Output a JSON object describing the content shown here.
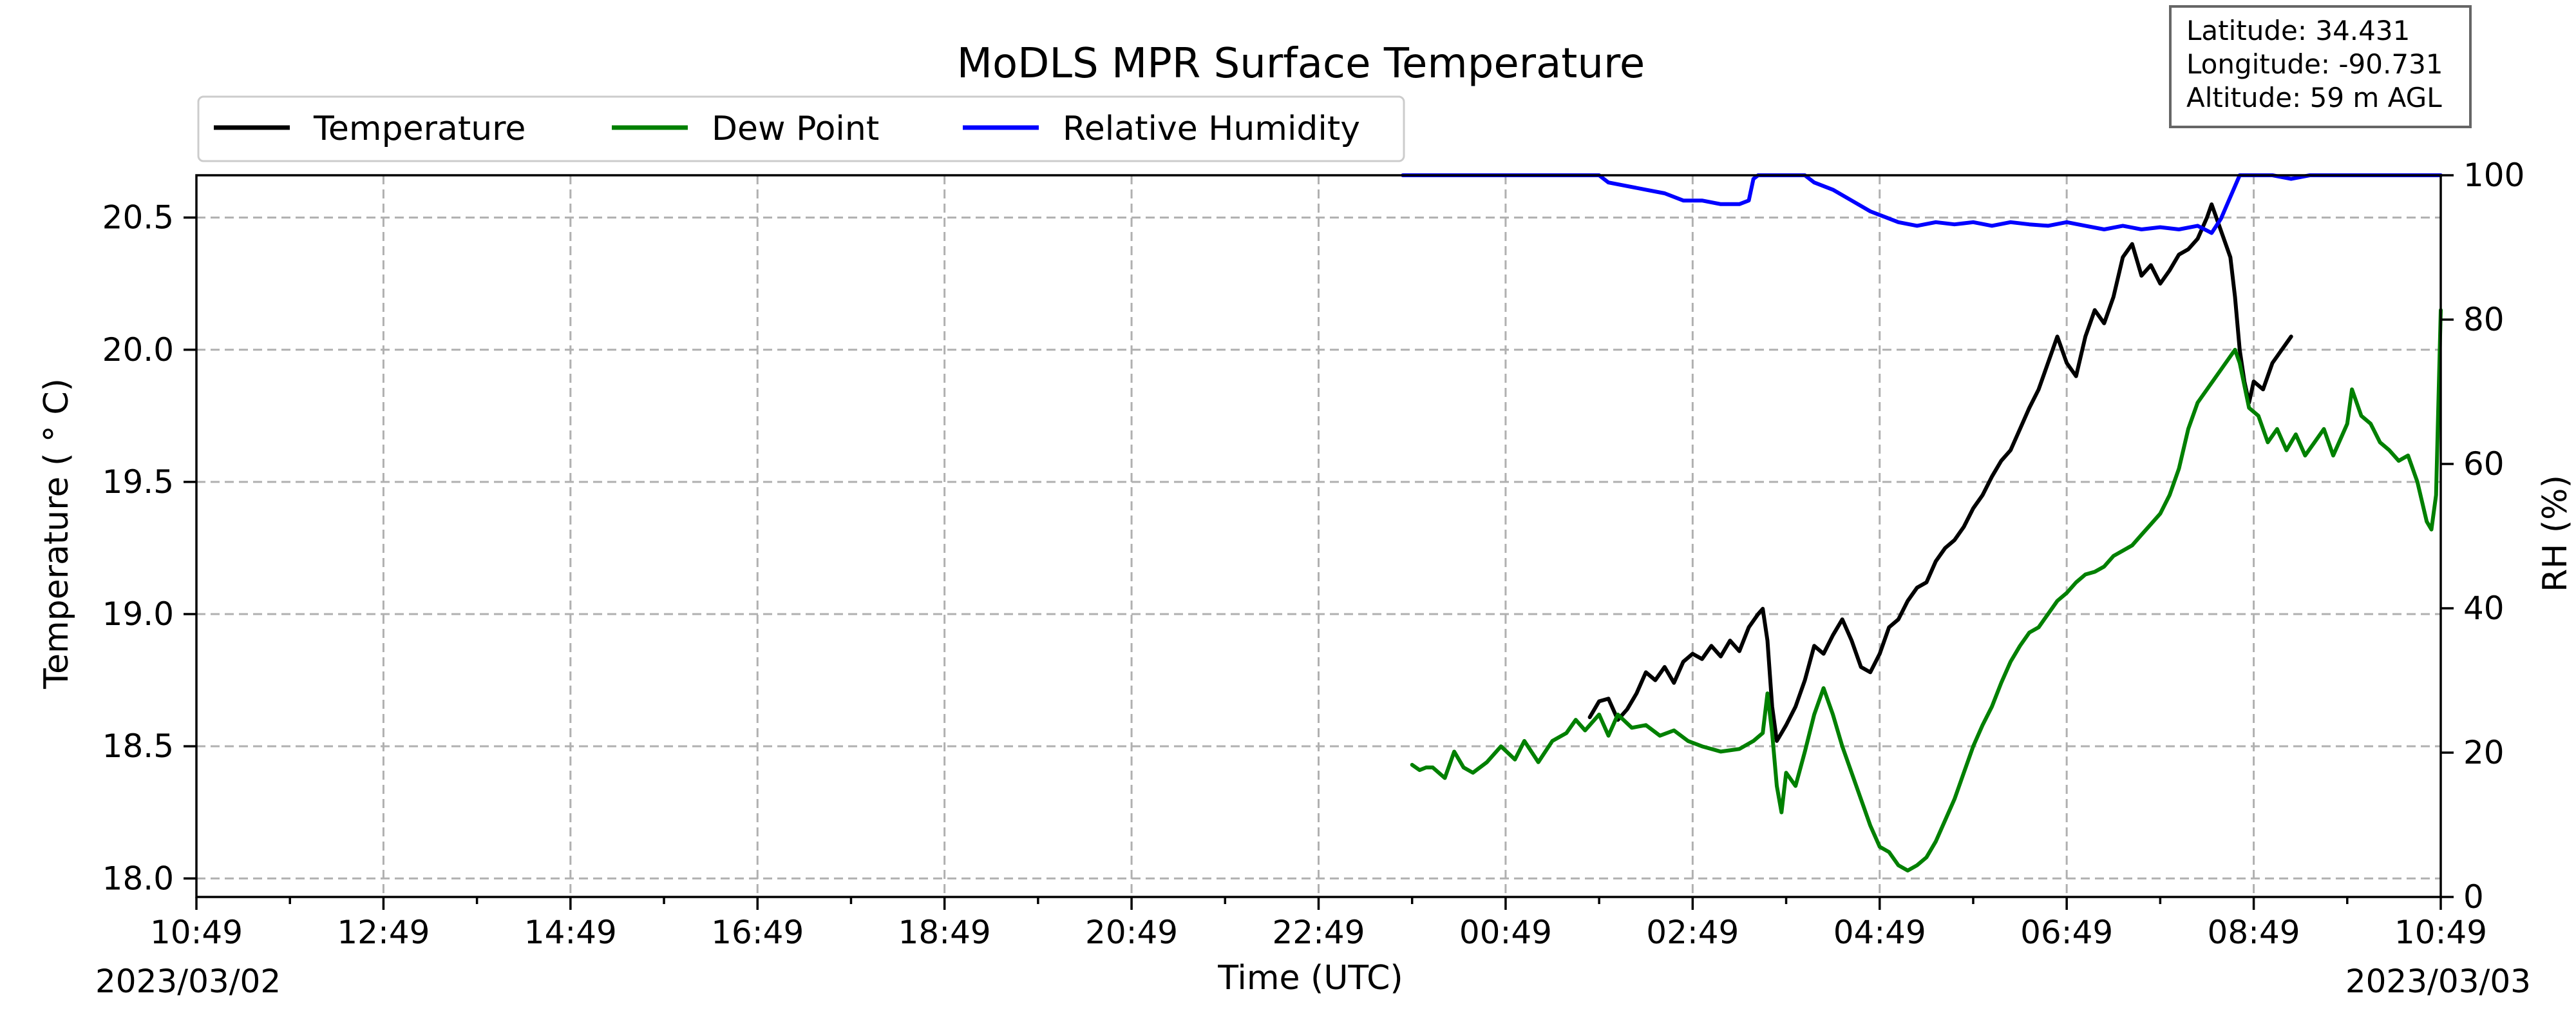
{
  "chart_data": {
    "type": "line",
    "title": "MoDLS MPR Surface Temperature",
    "xlabel": "Time (UTC)",
    "ylabel_left": "Temperature ( $^\\circ$C)",
    "ylabel_left_display": "Temperature ( ° C)",
    "ylabel_right": "RH (%)",
    "xlim_hours": [
      0,
      24
    ],
    "x_tick_labels": [
      "10:49",
      "12:49",
      "14:49",
      "16:49",
      "18:49",
      "20:49",
      "22:49",
      "00:49",
      "02:49",
      "04:49",
      "06:49",
      "08:49",
      "10:49"
    ],
    "start_date_label": "2023/03/02",
    "end_date_label": "2023/03/03",
    "ylim_left": [
      17.93,
      20.66
    ],
    "y_left_ticks": [
      "18.0",
      "18.5",
      "19.0",
      "19.5",
      "20.0",
      "20.5"
    ],
    "ylim_right": [
      0,
      100
    ],
    "y_right_ticks": [
      "0",
      "20",
      "40",
      "60",
      "80",
      "100"
    ],
    "grid": true,
    "legend_position": "upper-left above plot",
    "info_box": {
      "latitude": "Latitude: 34.431",
      "longitude": "Longitude: -90.731",
      "altitude": "Altitude: 59 m AGL"
    },
    "series": [
      {
        "name": "Temperature",
        "axis": "left",
        "color": "#000000",
        "points": [
          [
            14.9,
            18.61
          ],
          [
            15.0,
            18.67
          ],
          [
            15.1,
            18.68
          ],
          [
            15.2,
            18.6
          ],
          [
            15.3,
            18.64
          ],
          [
            15.4,
            18.7
          ],
          [
            15.5,
            18.78
          ],
          [
            15.6,
            18.75
          ],
          [
            15.7,
            18.8
          ],
          [
            15.8,
            18.74
          ],
          [
            15.9,
            18.82
          ],
          [
            16.0,
            18.85
          ],
          [
            16.1,
            18.83
          ],
          [
            16.2,
            18.88
          ],
          [
            16.3,
            18.84
          ],
          [
            16.4,
            18.9
          ],
          [
            16.5,
            18.86
          ],
          [
            16.6,
            18.95
          ],
          [
            16.7,
            19.0
          ],
          [
            16.75,
            19.02
          ],
          [
            16.8,
            18.9
          ],
          [
            16.85,
            18.65
          ],
          [
            16.9,
            18.52
          ],
          [
            16.95,
            18.55
          ],
          [
            17.0,
            18.58
          ],
          [
            17.1,
            18.65
          ],
          [
            17.2,
            18.75
          ],
          [
            17.3,
            18.88
          ],
          [
            17.4,
            18.85
          ],
          [
            17.5,
            18.92
          ],
          [
            17.6,
            18.98
          ],
          [
            17.7,
            18.9
          ],
          [
            17.8,
            18.8
          ],
          [
            17.9,
            18.78
          ],
          [
            18.0,
            18.85
          ],
          [
            18.1,
            18.95
          ],
          [
            18.2,
            18.98
          ],
          [
            18.3,
            19.05
          ],
          [
            18.4,
            19.1
          ],
          [
            18.5,
            19.12
          ],
          [
            18.6,
            19.2
          ],
          [
            18.7,
            19.25
          ],
          [
            18.8,
            19.28
          ],
          [
            18.9,
            19.33
          ],
          [
            19.0,
            19.4
          ],
          [
            19.1,
            19.45
          ],
          [
            19.2,
            19.52
          ],
          [
            19.3,
            19.58
          ],
          [
            19.4,
            19.62
          ],
          [
            19.5,
            19.7
          ],
          [
            19.6,
            19.78
          ],
          [
            19.7,
            19.85
          ],
          [
            19.8,
            19.95
          ],
          [
            19.9,
            20.05
          ],
          [
            20.0,
            19.95
          ],
          [
            20.1,
            19.9
          ],
          [
            20.2,
            20.05
          ],
          [
            20.3,
            20.15
          ],
          [
            20.4,
            20.1
          ],
          [
            20.5,
            20.2
          ],
          [
            20.6,
            20.35
          ],
          [
            20.7,
            20.4
          ],
          [
            20.8,
            20.28
          ],
          [
            20.9,
            20.32
          ],
          [
            21.0,
            20.25
          ],
          [
            21.1,
            20.3
          ],
          [
            21.2,
            20.36
          ],
          [
            21.3,
            20.38
          ],
          [
            21.4,
            20.42
          ],
          [
            21.5,
            20.5
          ],
          [
            21.55,
            20.55
          ],
          [
            21.65,
            20.45
          ],
          [
            21.75,
            20.35
          ],
          [
            21.8,
            20.2
          ],
          [
            21.85,
            20.0
          ],
          [
            21.9,
            19.88
          ],
          [
            21.95,
            19.8
          ],
          [
            22.0,
            19.88
          ],
          [
            22.1,
            19.85
          ],
          [
            22.2,
            19.95
          ],
          [
            22.3,
            20.0
          ],
          [
            22.4,
            20.05
          ]
        ]
      },
      {
        "name": "Dew Point",
        "axis": "left",
        "color": "#008000",
        "points": [
          [
            13.0,
            18.43
          ],
          [
            13.08,
            18.41
          ],
          [
            13.15,
            18.42
          ],
          [
            13.22,
            18.42
          ],
          [
            13.35,
            18.38
          ],
          [
            13.45,
            18.48
          ],
          [
            13.55,
            18.42
          ],
          [
            13.65,
            18.4
          ],
          [
            13.8,
            18.44
          ],
          [
            13.95,
            18.5
          ],
          [
            14.1,
            18.45
          ],
          [
            14.2,
            18.52
          ],
          [
            14.35,
            18.44
          ],
          [
            14.5,
            18.52
          ],
          [
            14.65,
            18.55
          ],
          [
            14.75,
            18.6
          ],
          [
            14.85,
            18.56
          ],
          [
            15.0,
            18.62
          ],
          [
            15.1,
            18.54
          ],
          [
            15.2,
            18.62
          ],
          [
            15.35,
            18.57
          ],
          [
            15.5,
            18.58
          ],
          [
            15.65,
            18.54
          ],
          [
            15.8,
            18.56
          ],
          [
            15.95,
            18.52
          ],
          [
            16.1,
            18.5
          ],
          [
            16.3,
            18.48
          ],
          [
            16.5,
            18.49
          ],
          [
            16.65,
            18.52
          ],
          [
            16.75,
            18.55
          ],
          [
            16.8,
            18.7
          ],
          [
            16.85,
            18.55
          ],
          [
            16.9,
            18.35
          ],
          [
            16.95,
            18.25
          ],
          [
            17.0,
            18.4
          ],
          [
            17.1,
            18.35
          ],
          [
            17.2,
            18.48
          ],
          [
            17.3,
            18.62
          ],
          [
            17.4,
            18.72
          ],
          [
            17.5,
            18.62
          ],
          [
            17.6,
            18.5
          ],
          [
            17.7,
            18.4
          ],
          [
            17.8,
            18.3
          ],
          [
            17.9,
            18.2
          ],
          [
            18.0,
            18.12
          ],
          [
            18.1,
            18.1
          ],
          [
            18.2,
            18.05
          ],
          [
            18.3,
            18.03
          ],
          [
            18.4,
            18.05
          ],
          [
            18.5,
            18.08
          ],
          [
            18.6,
            18.14
          ],
          [
            18.7,
            18.22
          ],
          [
            18.8,
            18.3
          ],
          [
            18.9,
            18.4
          ],
          [
            19.0,
            18.5
          ],
          [
            19.1,
            18.58
          ],
          [
            19.2,
            18.65
          ],
          [
            19.3,
            18.74
          ],
          [
            19.4,
            18.82
          ],
          [
            19.5,
            18.88
          ],
          [
            19.6,
            18.93
          ],
          [
            19.7,
            18.95
          ],
          [
            19.8,
            19.0
          ],
          [
            19.9,
            19.05
          ],
          [
            20.0,
            19.08
          ],
          [
            20.1,
            19.12
          ],
          [
            20.2,
            19.15
          ],
          [
            20.3,
            19.16
          ],
          [
            20.4,
            19.18
          ],
          [
            20.5,
            19.22
          ],
          [
            20.6,
            19.24
          ],
          [
            20.7,
            19.26
          ],
          [
            20.8,
            19.3
          ],
          [
            20.9,
            19.34
          ],
          [
            21.0,
            19.38
          ],
          [
            21.1,
            19.45
          ],
          [
            21.2,
            19.55
          ],
          [
            21.3,
            19.7
          ],
          [
            21.4,
            19.8
          ],
          [
            21.5,
            19.85
          ],
          [
            21.6,
            19.9
          ],
          [
            21.7,
            19.95
          ],
          [
            21.8,
            20.0
          ],
          [
            21.85,
            19.95
          ],
          [
            21.95,
            19.78
          ],
          [
            22.05,
            19.75
          ],
          [
            22.15,
            19.65
          ],
          [
            22.25,
            19.7
          ],
          [
            22.35,
            19.62
          ],
          [
            22.45,
            19.68
          ],
          [
            22.55,
            19.6
          ],
          [
            22.65,
            19.65
          ],
          [
            22.75,
            19.7
          ],
          [
            22.85,
            19.6
          ],
          [
            22.95,
            19.68
          ],
          [
            23.0,
            19.72
          ],
          [
            23.05,
            19.85
          ],
          [
            23.15,
            19.75
          ],
          [
            23.25,
            19.72
          ],
          [
            23.35,
            19.65
          ],
          [
            23.45,
            19.62
          ],
          [
            23.55,
            19.58
          ],
          [
            23.65,
            19.6
          ],
          [
            23.75,
            19.5
          ],
          [
            23.85,
            19.35
          ],
          [
            23.9,
            19.32
          ],
          [
            23.95,
            19.45
          ],
          [
            24.0,
            20.15
          ]
        ]
      },
      {
        "name": "Relative Humidity",
        "axis": "right",
        "color": "#0000ff",
        "points": [
          [
            12.9,
            100
          ],
          [
            13.5,
            100
          ],
          [
            14.0,
            100
          ],
          [
            14.5,
            100
          ],
          [
            15.0,
            100
          ],
          [
            15.1,
            99.0
          ],
          [
            15.3,
            98.5
          ],
          [
            15.5,
            98.0
          ],
          [
            15.7,
            97.5
          ],
          [
            15.9,
            96.5
          ],
          [
            16.1,
            96.5
          ],
          [
            16.3,
            96.0
          ],
          [
            16.5,
            96.0
          ],
          [
            16.6,
            96.5
          ],
          [
            16.65,
            99.5
          ],
          [
            16.7,
            100
          ],
          [
            17.0,
            100
          ],
          [
            17.2,
            100
          ],
          [
            17.3,
            99.0
          ],
          [
            17.5,
            98.0
          ],
          [
            17.7,
            96.5
          ],
          [
            17.9,
            95.0
          ],
          [
            18.1,
            94.0
          ],
          [
            18.2,
            93.5
          ],
          [
            18.4,
            93.0
          ],
          [
            18.6,
            93.5
          ],
          [
            18.8,
            93.2
          ],
          [
            19.0,
            93.5
          ],
          [
            19.2,
            93.0
          ],
          [
            19.4,
            93.5
          ],
          [
            19.6,
            93.2
          ],
          [
            19.8,
            93.0
          ],
          [
            20.0,
            93.5
          ],
          [
            20.2,
            93.0
          ],
          [
            20.4,
            92.5
          ],
          [
            20.6,
            93.0
          ],
          [
            20.8,
            92.5
          ],
          [
            21.0,
            92.8
          ],
          [
            21.2,
            92.5
          ],
          [
            21.4,
            93.0
          ],
          [
            21.55,
            92.0
          ],
          [
            21.65,
            94.0
          ],
          [
            21.75,
            97.0
          ],
          [
            21.85,
            100
          ],
          [
            22.0,
            100
          ],
          [
            22.2,
            100
          ],
          [
            22.4,
            99.5
          ],
          [
            22.6,
            100
          ],
          [
            23.0,
            100
          ],
          [
            23.5,
            100
          ],
          [
            24.0,
            100
          ]
        ]
      }
    ]
  }
}
